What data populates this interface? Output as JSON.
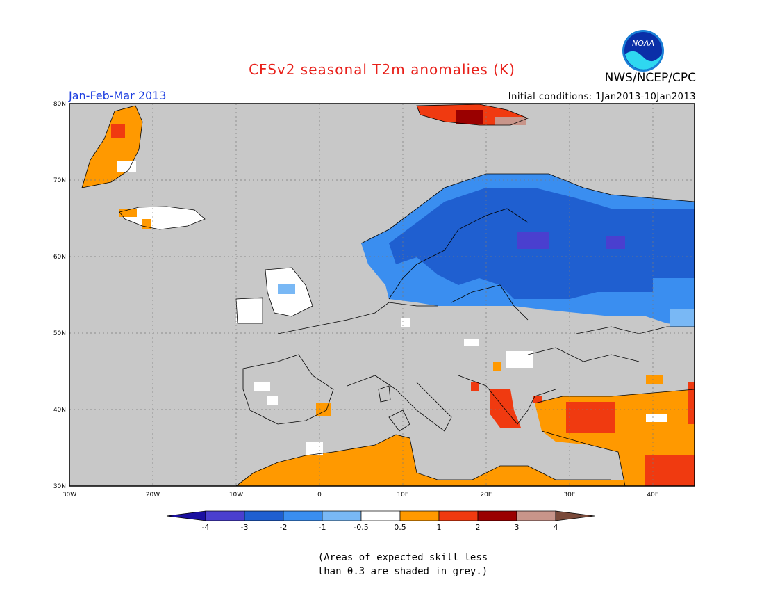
{
  "header": {
    "title": "CFSv2 seasonal T2m anomalies (K)",
    "agency": "NWS/NCEP/CPC",
    "logo_text": "NOAA",
    "period": "Jan-Feb-Mar 2013",
    "initial_conditions": "Initial conditions: 1Jan2013-10Jan2013"
  },
  "map": {
    "region": "Europe",
    "lon_range": [
      -30,
      45
    ],
    "lat_range": [
      30,
      80
    ],
    "lat_ticks": [
      "30N",
      "40N",
      "50N",
      "60N",
      "70N",
      "80N"
    ],
    "lon_ticks": [
      "30W",
      "20W",
      "10W",
      "0",
      "10E",
      "20E",
      "30E",
      "40E"
    ],
    "skill_mask_color": "#c8c8c8"
  },
  "colorbar": {
    "colors": [
      "#1a0fa0",
      "#4a3fcf",
      "#1f5fd0",
      "#3a8ef0",
      "#79b8f5",
      "#ffffff",
      "#ff9900",
      "#f03a10",
      "#9a0000",
      "#c8958a",
      "#7a4a3a"
    ],
    "labels": [
      "-4",
      "-3",
      "-2",
      "-1",
      "-0.5",
      "0.5",
      "1",
      "2",
      "3",
      "4"
    ]
  },
  "note": {
    "line1": "(Areas of expected skill less",
    "line2": "than 0.3 are shaded in grey.)"
  }
}
